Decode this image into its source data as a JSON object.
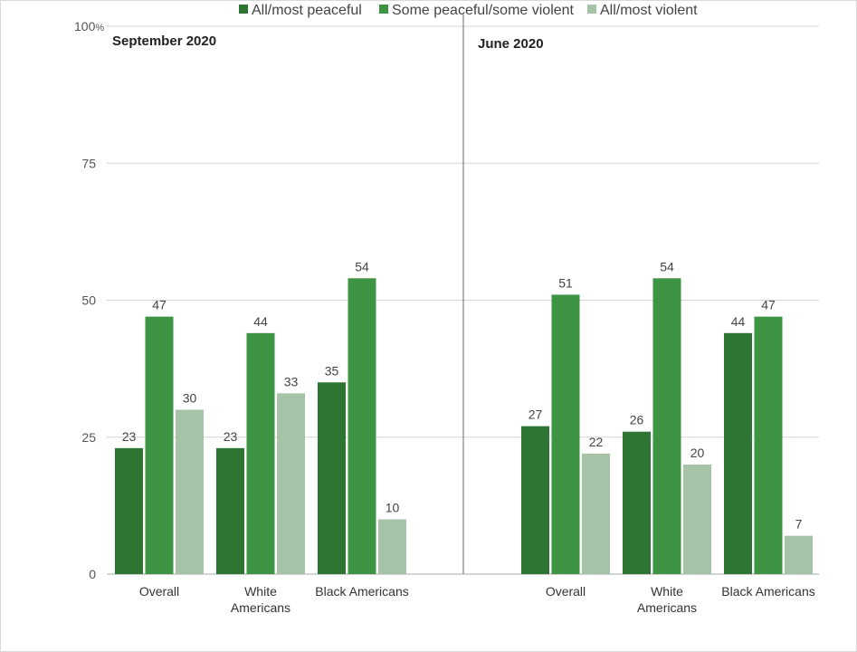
{
  "chart_data": {
    "type": "bar",
    "ylim": [
      0,
      100
    ],
    "yticks": [
      "0",
      "25",
      "50",
      "75",
      "100"
    ],
    "ytick_suffix": "%",
    "grid": true,
    "legend_position": "top",
    "series": [
      {
        "name": "All/most peaceful",
        "color": "#2e7433"
      },
      {
        "name": "Some peaceful/some violent",
        "color": "#3d9443"
      },
      {
        "name": "All/most violent",
        "color": "#a6c3a7"
      }
    ],
    "panels": [
      {
        "title": "September 2020",
        "categories": [
          [
            "Overall"
          ],
          [
            "White",
            "Americans"
          ],
          [
            "Black Americans"
          ]
        ],
        "values": [
          [
            23,
            47,
            30
          ],
          [
            23,
            44,
            33
          ],
          [
            35,
            54,
            10
          ]
        ]
      },
      {
        "title": "June 2020",
        "categories": [
          [
            "Overall"
          ],
          [
            "White",
            "Americans"
          ],
          [
            "Black Americans"
          ]
        ],
        "values": [
          [
            27,
            51,
            22
          ],
          [
            26,
            54,
            20
          ],
          [
            44,
            47,
            7
          ]
        ]
      }
    ]
  }
}
